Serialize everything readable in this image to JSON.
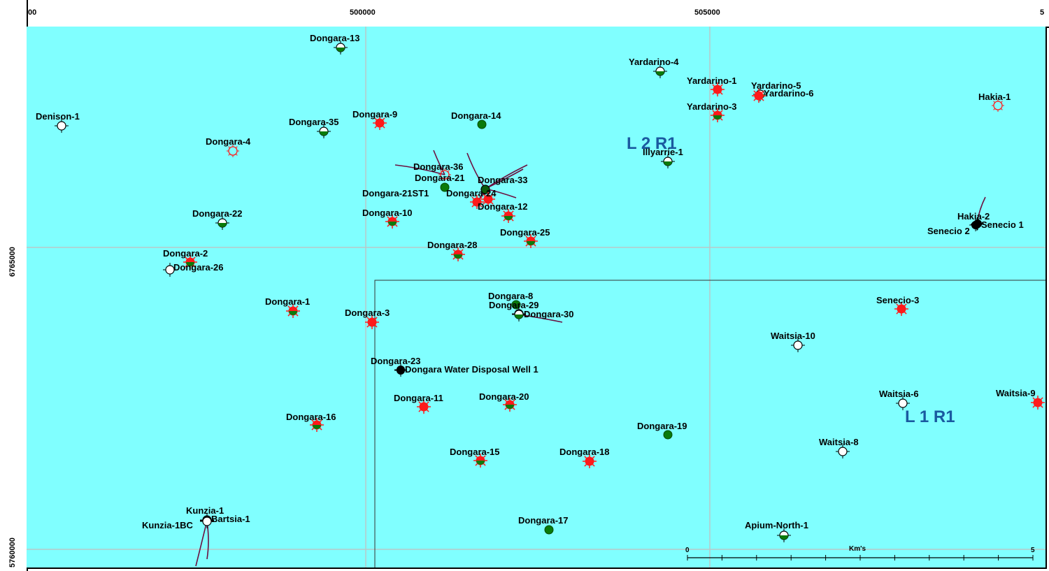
{
  "x_axis_ticks": [
    "00",
    "500000",
    "505000",
    "5"
  ],
  "y_axis_ticks": [
    "6765000",
    "5760000"
  ],
  "permits": [
    {
      "label": "L 2 R1"
    },
    {
      "label": "L 1 R1"
    }
  ],
  "scale_bar": {
    "start": "0",
    "end": "5",
    "unit": "Km's"
  },
  "colors": {
    "background": "#80ffff",
    "grid": "#b8c8c8",
    "gas": "#ff1a1a",
    "oil": "#0a7a0a",
    "water": "#000000",
    "dry": "#ffffff",
    "permit_label": "#1a5aa0",
    "well_trajectory": "#6b1040"
  },
  "wells": [
    {
      "name": "Dongara-13",
      "symbol": "oil-half"
    },
    {
      "name": "Denison-1",
      "symbol": "dry"
    },
    {
      "name": "Dongara-35",
      "symbol": "oil-half"
    },
    {
      "name": "Dongara-9",
      "symbol": "gas"
    },
    {
      "name": "Dongara-14",
      "symbol": "oil"
    },
    {
      "name": "Dongara-4",
      "symbol": "gas-show"
    },
    {
      "name": "Yardarino-4",
      "symbol": "oil-half"
    },
    {
      "name": "Yardarino-1",
      "symbol": "gas"
    },
    {
      "name": "Yardarino-5",
      "symbol": "oil-half"
    },
    {
      "name": "Yardarino-6",
      "symbol": "gas"
    },
    {
      "name": "Yardarino-3",
      "symbol": "gas-oil"
    },
    {
      "name": "Hakia-1",
      "symbol": "gas-show"
    },
    {
      "name": "Illyarrie-1",
      "symbol": "oil-half"
    },
    {
      "name": "Dongara-36",
      "symbol": "gas-show"
    },
    {
      "name": "Dongara-21",
      "symbol": "oil"
    },
    {
      "name": "Dongara-33",
      "symbol": "oil-dark"
    },
    {
      "name": "Dongara-21ST1",
      "symbol": "gas"
    },
    {
      "name": "Dongara-24",
      "symbol": "gas"
    },
    {
      "name": "Dongara-12",
      "symbol": "gas-oil"
    },
    {
      "name": "Dongara-22",
      "symbol": "oil-half"
    },
    {
      "name": "Dongara-10",
      "symbol": "gas-oil"
    },
    {
      "name": "Dongara-25",
      "symbol": "gas-oil"
    },
    {
      "name": "Hakia-2",
      "symbol": "water"
    },
    {
      "name": "Senecio 2",
      "symbol": "water"
    },
    {
      "name": "Senecio 1",
      "symbol": "water"
    },
    {
      "name": "Dongara-28",
      "symbol": "gas-oil"
    },
    {
      "name": "Dongara-2",
      "symbol": "gas-oil"
    },
    {
      "name": "Dongara-26",
      "symbol": "dry"
    },
    {
      "name": "Dongara-8",
      "symbol": "oil"
    },
    {
      "name": "Dongara-29",
      "symbol": "oil-half"
    },
    {
      "name": "Dongara-30",
      "symbol": "oil-half"
    },
    {
      "name": "Dongara-1",
      "symbol": "gas-oil"
    },
    {
      "name": "Dongara-3",
      "symbol": "gas"
    },
    {
      "name": "Senecio-3",
      "symbol": "gas"
    },
    {
      "name": "Waitsia-10",
      "symbol": "dry"
    },
    {
      "name": "Dongara-23",
      "symbol": "water"
    },
    {
      "name": "Dongara Water Disposal Well 1",
      "symbol": "water"
    },
    {
      "name": "Dongara-11",
      "symbol": "gas"
    },
    {
      "name": "Dongara-20",
      "symbol": "gas-oil"
    },
    {
      "name": "Waitsia-6",
      "symbol": "dry"
    },
    {
      "name": "Waitsia-9",
      "symbol": "gas"
    },
    {
      "name": "Dongara-16",
      "symbol": "gas-oil"
    },
    {
      "name": "Dongara-19",
      "symbol": "oil"
    },
    {
      "name": "Waitsia-8",
      "symbol": "dry"
    },
    {
      "name": "Dongara-15",
      "symbol": "gas-oil"
    },
    {
      "name": "Dongara-18",
      "symbol": "gas"
    },
    {
      "name": "Kunzia-1",
      "symbol": "dry"
    },
    {
      "name": "Kunzia-1BC",
      "symbol": "dry"
    },
    {
      "name": "Bartsia-1",
      "symbol": "dry"
    },
    {
      "name": "Dongara-17",
      "symbol": "oil"
    },
    {
      "name": "Apium-North-1",
      "symbol": "oil-half"
    }
  ]
}
